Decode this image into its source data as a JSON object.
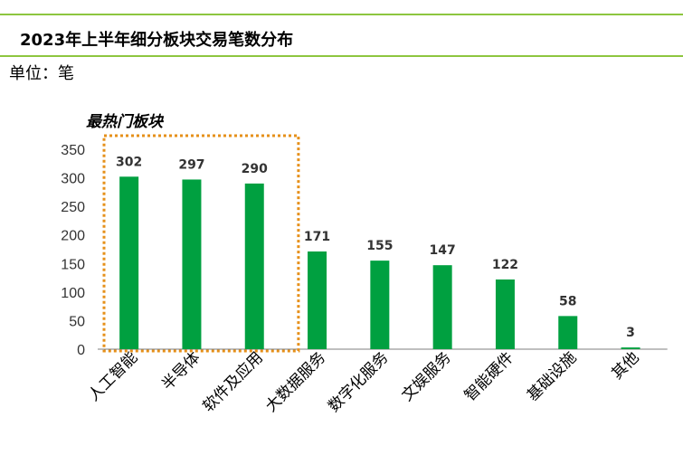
{
  "header": {
    "title": "2023年上半年细分板块交易笔数分布",
    "unit_label": "单位：笔"
  },
  "chart_data": {
    "type": "bar",
    "categories": [
      "人工智能",
      "半导体",
      "软件及应用",
      "大数据服务",
      "数字化服务",
      "文娱服务",
      "智能硬件",
      "基础设施",
      "其他"
    ],
    "values": [
      302,
      297,
      290,
      171,
      155,
      147,
      122,
      58,
      3
    ],
    "title": "",
    "xlabel": "",
    "ylabel": "",
    "ylim": [
      0,
      350
    ],
    "yticks": [
      0,
      50,
      100,
      150,
      200,
      250,
      300,
      350
    ],
    "grid": false,
    "bar_color": "#00a040",
    "annotation": {
      "text": "最热门板块",
      "covers_categories": [
        0,
        1,
        2
      ],
      "style": "dotted-box",
      "color": "#e6901a"
    }
  }
}
